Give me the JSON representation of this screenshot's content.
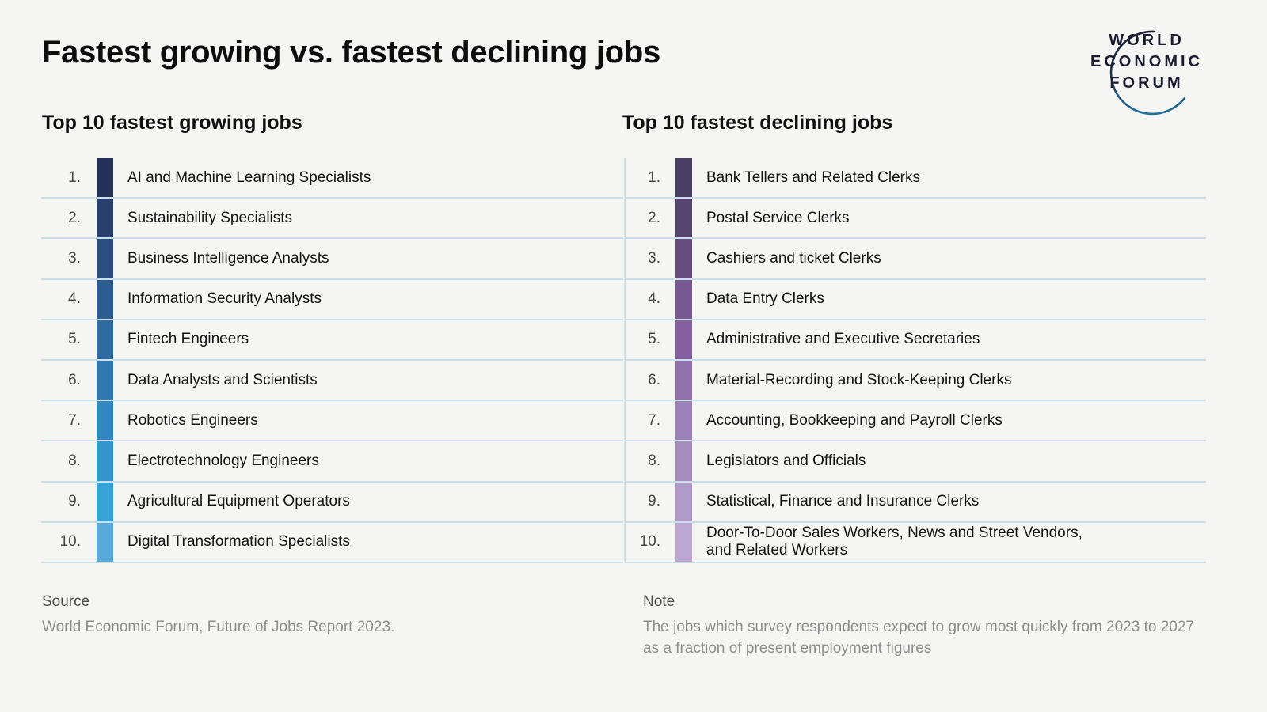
{
  "page": {
    "title": "Fastest growing vs. fastest declining jobs",
    "background_color": "#f5f5f4",
    "separator_color": "#cbdfe9"
  },
  "logo": {
    "line1": "WORLD",
    "line2": "ECONOMIC",
    "line3": "FORUM",
    "arc_color": "#1f6f9f",
    "text_color": "#1b1b30"
  },
  "growing": {
    "heading": "Top 10 fastest growing jobs",
    "items": [
      {
        "rank": "1.",
        "label": "AI and Machine Learning Specialists",
        "label2": "",
        "color": "#263159"
      },
      {
        "rank": "2.",
        "label": "Sustainability Specialists",
        "label2": "",
        "color": "#28406e"
      },
      {
        "rank": "3.",
        "label": "Business Intelligence Analysts",
        "label2": "",
        "color": "#2a4e80"
      },
      {
        "rank": "4.",
        "label": "Information Security Analysts",
        "label2": "",
        "color": "#2c5c91"
      },
      {
        "rank": "5.",
        "label": "Fintech Engineers",
        "label2": "",
        "color": "#2e6ba3"
      },
      {
        "rank": "6.",
        "label": "Data Analysts and Scientists",
        "label2": "",
        "color": "#2f79b2"
      },
      {
        "rank": "7.",
        "label": "Robotics Engineers",
        "label2": "",
        "color": "#3188c1"
      },
      {
        "rank": "8.",
        "label": "Electrotechnology Engineers",
        "label2": "",
        "color": "#3396cf"
      },
      {
        "rank": "9.",
        "label": "Agricultural Equipment Operators",
        "label2": "",
        "color": "#35a2d9"
      },
      {
        "rank": "10.",
        "label": "Digital Transformation Specialists",
        "label2": "",
        "color": "#58aadd"
      }
    ]
  },
  "declining": {
    "heading": "Top 10 fastest declining jobs",
    "items": [
      {
        "rank": "1.",
        "label": "Bank Tellers and Related Clerks",
        "label2": "",
        "color": "#4b3e65"
      },
      {
        "rank": "2.",
        "label": "Postal Service Clerks",
        "label2": "",
        "color": "#56456f"
      },
      {
        "rank": "3.",
        "label": "Cashiers and ticket Clerks",
        "label2": "",
        "color": "#654e7f"
      },
      {
        "rank": "4.",
        "label": "Data Entry Clerks",
        "label2": "",
        "color": "#775991"
      },
      {
        "rank": "5.",
        "label": "Administrative and Executive Secretaries",
        "label2": "",
        "color": "#84609f"
      },
      {
        "rank": "6.",
        "label": "Material-Recording and Stock-Keeping Clerks",
        "label2": "",
        "color": "#8f71ab"
      },
      {
        "rank": "7.",
        "label": "Accounting, Bookkeeping and Payroll Clerks",
        "label2": "",
        "color": "#9b81b6"
      },
      {
        "rank": "8.",
        "label": "Legislators and Officials",
        "label2": "",
        "color": "#a68dbf"
      },
      {
        "rank": "9.",
        "label": "Statistical, Finance and Insurance Clerks",
        "label2": "",
        "color": "#b09bc8"
      },
      {
        "rank": "10.",
        "label": "Door-To-Door Sales Workers, News and Street Vendors,",
        "label2": "and Related Workers",
        "color": "#bba7d1"
      }
    ]
  },
  "footer": {
    "source_label": "Source",
    "source_text": "World Economic Forum, Future of Jobs Report 2023.",
    "note_label": "Note",
    "note_text": "The jobs which survey respondents expect to grow most quickly from 2023 to 2027 as a fraction of present employment figures"
  },
  "chart_data": [
    {
      "type": "table",
      "title": "Top 10 fastest growing jobs",
      "columns": [
        "Rank",
        "Job"
      ],
      "rows": [
        [
          1,
          "AI and Machine Learning Specialists"
        ],
        [
          2,
          "Sustainability Specialists"
        ],
        [
          3,
          "Business Intelligence Analysts"
        ],
        [
          4,
          "Information Security Analysts"
        ],
        [
          5,
          "Fintech Engineers"
        ],
        [
          6,
          "Data Analysts and Scientists"
        ],
        [
          7,
          "Robotics Engineers"
        ],
        [
          8,
          "Electrotechnology Engineers"
        ],
        [
          9,
          "Agricultural Equipment Operators"
        ],
        [
          10,
          "Digital Transformation Specialists"
        ]
      ],
      "color_scale": [
        "#263159",
        "#58aadd"
      ]
    },
    {
      "type": "table",
      "title": "Top 10 fastest declining jobs",
      "columns": [
        "Rank",
        "Job"
      ],
      "rows": [
        [
          1,
          "Bank Tellers and Related Clerks"
        ],
        [
          2,
          "Postal Service Clerks"
        ],
        [
          3,
          "Cashiers and ticket Clerks"
        ],
        [
          4,
          "Data Entry Clerks"
        ],
        [
          5,
          "Administrative and Executive Secretaries"
        ],
        [
          6,
          "Material-Recording and Stock-Keeping Clerks"
        ],
        [
          7,
          "Accounting, Bookkeeping and Payroll Clerks"
        ],
        [
          8,
          "Legislators and Officials"
        ],
        [
          9,
          "Statistical, Finance and Insurance Clerks"
        ],
        [
          10,
          "Door-To-Door Sales Workers, News and Street Vendors, and Related Workers"
        ]
      ],
      "color_scale": [
        "#4b3e65",
        "#bba7d1"
      ]
    }
  ]
}
